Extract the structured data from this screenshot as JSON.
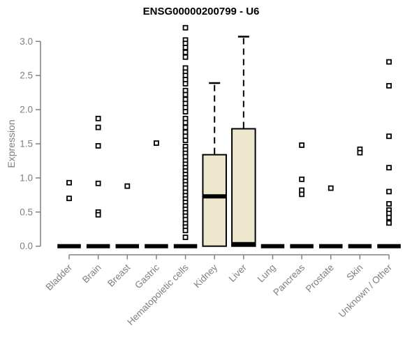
{
  "chart_data": {
    "type": "boxplot",
    "title": "ENSG00000200799 - U6",
    "ylabel": "Expression",
    "ylim": [
      0.0,
      3.2
    ],
    "yticks": [
      0.0,
      0.5,
      1.0,
      1.5,
      2.0,
      2.5,
      3.0
    ],
    "grid": false,
    "categories": [
      "Bladder",
      "Brain",
      "Breast",
      "Gastric",
      "Hematopoietic cells",
      "Kidney",
      "Liver",
      "Lung",
      "Pancreas",
      "Prostate",
      "Skin",
      "Unknown / Other"
    ],
    "boxes": [
      {
        "category": "Bladder",
        "q1": 0,
        "median": 0,
        "q3": 0,
        "whisker_low": 0,
        "whisker_high": 0,
        "outliers": [
          0.93,
          0.7
        ]
      },
      {
        "category": "Brain",
        "q1": 0,
        "median": 0,
        "q3": 0,
        "whisker_low": 0,
        "whisker_high": 0,
        "outliers": [
          1.87,
          1.74,
          1.47,
          0.92,
          0.5,
          0.46
        ]
      },
      {
        "category": "Breast",
        "q1": 0,
        "median": 0,
        "q3": 0,
        "whisker_low": 0,
        "whisker_high": 0,
        "outliers": [
          0.88
        ]
      },
      {
        "category": "Gastric",
        "q1": 0,
        "median": 0,
        "q3": 0,
        "whisker_low": 0,
        "whisker_high": 0,
        "outliers": [
          1.51
        ]
      },
      {
        "category": "Hematopoietic cells",
        "q1": 0,
        "median": 0,
        "q3": 0,
        "whisker_low": 0,
        "whisker_high": 0,
        "outliers": [
          3.2,
          3.02,
          2.97,
          2.91,
          2.84,
          2.77,
          2.61,
          2.55,
          2.5,
          2.44,
          2.38,
          2.28,
          2.22,
          2.15,
          2.09,
          2.03,
          1.97,
          1.87,
          1.81,
          1.74,
          1.67,
          1.61,
          1.55,
          1.46,
          1.41,
          1.36,
          1.31,
          1.25,
          1.2,
          1.15,
          1.1,
          1.05,
          1.0,
          0.95,
          0.9,
          0.85,
          0.79,
          0.74,
          0.69,
          0.64,
          0.59,
          0.54,
          0.49,
          0.44,
          0.39,
          0.33,
          0.28,
          0.23,
          0.13
        ]
      },
      {
        "category": "Kidney",
        "q1": 0,
        "median": 0.73,
        "q3": 1.34,
        "whisker_low": 0,
        "whisker_high": 2.39,
        "outliers": []
      },
      {
        "category": "Liver",
        "q1": 0,
        "median": 0.03,
        "q3": 1.72,
        "whisker_low": 0,
        "whisker_high": 3.07,
        "outliers": []
      },
      {
        "category": "Lung",
        "q1": 0,
        "median": 0,
        "q3": 0,
        "whisker_low": 0,
        "whisker_high": 0,
        "outliers": []
      },
      {
        "category": "Pancreas",
        "q1": 0,
        "median": 0,
        "q3": 0,
        "whisker_low": 0,
        "whisker_high": 0,
        "outliers": [
          1.48,
          0.98,
          0.82,
          0.76
        ]
      },
      {
        "category": "Prostate",
        "q1": 0,
        "median": 0,
        "q3": 0,
        "whisker_low": 0,
        "whisker_high": 0,
        "outliers": [
          0.85
        ]
      },
      {
        "category": "Skin",
        "q1": 0,
        "median": 0,
        "q3": 0,
        "whisker_low": 0,
        "whisker_high": 0,
        "outliers": [
          1.42,
          1.37
        ]
      },
      {
        "category": "Unknown / Other",
        "q1": 0,
        "median": 0,
        "q3": 0,
        "whisker_low": 0,
        "whisker_high": 0,
        "outliers": [
          2.7,
          2.35,
          1.61,
          1.15,
          0.8,
          0.62,
          0.53,
          0.48,
          0.42,
          0.34
        ]
      }
    ],
    "colors": {
      "box_fill": "#EDE7CE",
      "box_border": "#000000",
      "median": "#000000",
      "whisker": "#000000",
      "point_stroke": "#000000",
      "point_fill": "#FFFFFF",
      "axis": "#808080",
      "tick_label": "#7F7F7F",
      "title": "#000000"
    },
    "legend": null
  }
}
